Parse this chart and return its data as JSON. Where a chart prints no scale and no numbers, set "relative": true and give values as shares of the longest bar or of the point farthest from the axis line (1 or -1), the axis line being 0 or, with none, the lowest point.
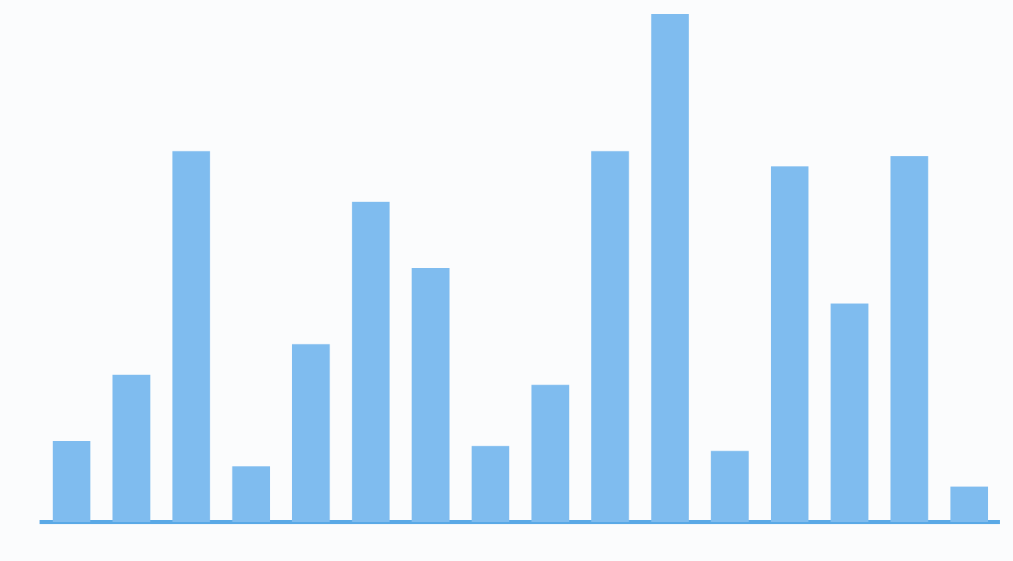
{
  "chart_data": {
    "type": "bar",
    "relative": true,
    "categories": [
      null,
      null,
      null,
      null,
      null,
      null,
      null,
      null,
      null,
      null,
      null,
      null,
      null,
      null,
      null,
      null
    ],
    "values": [
      0.16,
      0.29,
      0.73,
      0.11,
      0.35,
      0.63,
      0.5,
      0.15,
      0.27,
      0.73,
      1,
      0.14,
      0.7,
      0.43,
      0.72,
      0.07
    ],
    "color": "#7fbcef",
    "grid": false,
    "legend": false
  }
}
